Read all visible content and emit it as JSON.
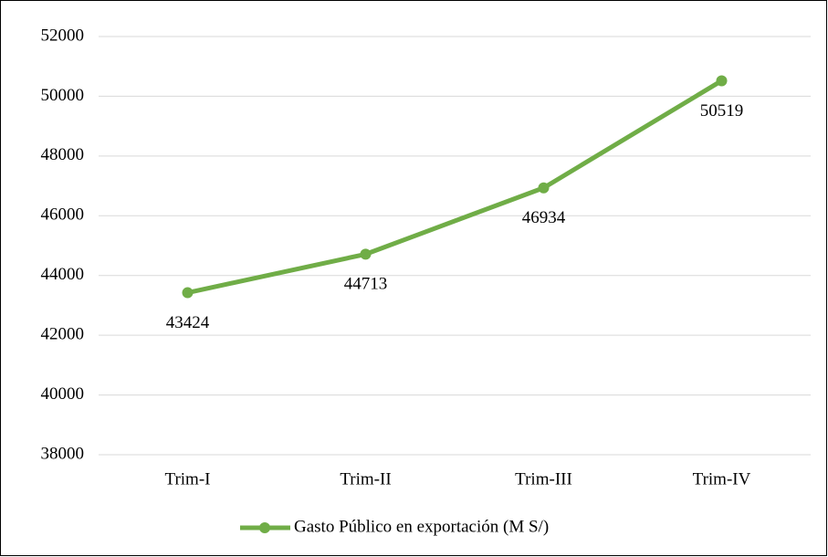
{
  "chart_data": {
    "type": "line",
    "categories": [
      "Trim-I",
      "Trim-II",
      "Trim-III",
      "Trim-IV"
    ],
    "series": [
      {
        "name": "Gasto Público en exportación (M S/)",
        "color": "#70ad47",
        "values": [
          43424,
          44713,
          46934,
          50519
        ]
      }
    ],
    "ylim": [
      38000,
      52000
    ],
    "yticks": [
      38000,
      40000,
      42000,
      44000,
      46000,
      48000,
      50000,
      52000
    ],
    "grid": true,
    "legend": "bottom"
  }
}
